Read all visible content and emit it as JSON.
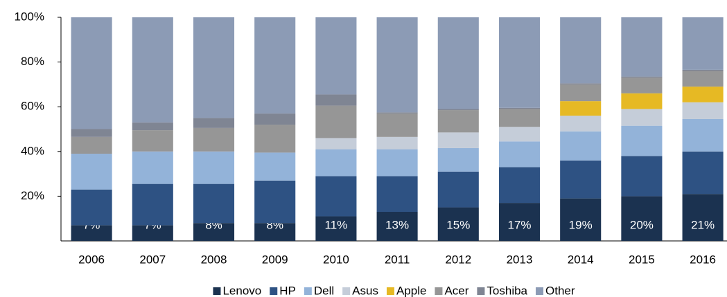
{
  "chart_data": {
    "type": "stacked_bar",
    "categories": [
      "2006",
      "2007",
      "2008",
      "2009",
      "2010",
      "2011",
      "2012",
      "2013",
      "2014",
      "2015",
      "2016"
    ],
    "series": [
      {
        "name": "Lenovo",
        "color": "#1b3250",
        "values": [
          7,
          7,
          8,
          8,
          11,
          13,
          15,
          17,
          19,
          20,
          21
        ],
        "value_labels": [
          "7%",
          "7%",
          "8%",
          "8%",
          "11%",
          "13%",
          "15%",
          "17%",
          "19%",
          "20%",
          "21%"
        ]
      },
      {
        "name": "HP",
        "color": "#2e5283",
        "values": [
          16,
          18.5,
          17.5,
          19,
          18,
          16,
          16,
          16,
          17,
          18,
          19
        ]
      },
      {
        "name": "Dell",
        "color": "#93b3d9",
        "values": [
          16,
          14.5,
          14.5,
          12.5,
          12,
          12,
          10.5,
          11.5,
          13,
          13.5,
          14.5
        ]
      },
      {
        "name": "Asus",
        "color": "#c5cdd9",
        "values": [
          0,
          0,
          0,
          0,
          5,
          5.5,
          7,
          6.5,
          7,
          7.5,
          7.5
        ]
      },
      {
        "name": "Apple",
        "color": "#e6b924",
        "values": [
          0,
          0,
          0,
          0,
          0,
          0,
          0,
          0,
          6.5,
          7,
          7
        ]
      },
      {
        "name": "Acer",
        "color": "#969696",
        "values": [
          7.5,
          9.5,
          10.5,
          12.5,
          14.5,
          10.5,
          10,
          8,
          7.5,
          7,
          7
        ]
      },
      {
        "name": "Toshiba",
        "color": "#7f8593",
        "values": [
          3.5,
          3.5,
          4.5,
          5,
          5,
          0.5,
          0.5,
          0.5,
          0.5,
          0.5,
          0.5
        ]
      },
      {
        "name": "Other",
        "color": "#8c9bb5",
        "values": [
          50,
          47,
          45,
          43,
          34.5,
          42.5,
          41,
          40.5,
          29.5,
          26.5,
          23.5
        ]
      }
    ],
    "ylim": [
      0,
      100
    ],
    "yticks": [
      {
        "value": 20,
        "label": "20%"
      },
      {
        "value": 40,
        "label": "40%"
      },
      {
        "value": 60,
        "label": "60%"
      },
      {
        "value": 80,
        "label": "80%"
      },
      {
        "value": 100,
        "label": "100%"
      }
    ],
    "legend": "bottom"
  }
}
